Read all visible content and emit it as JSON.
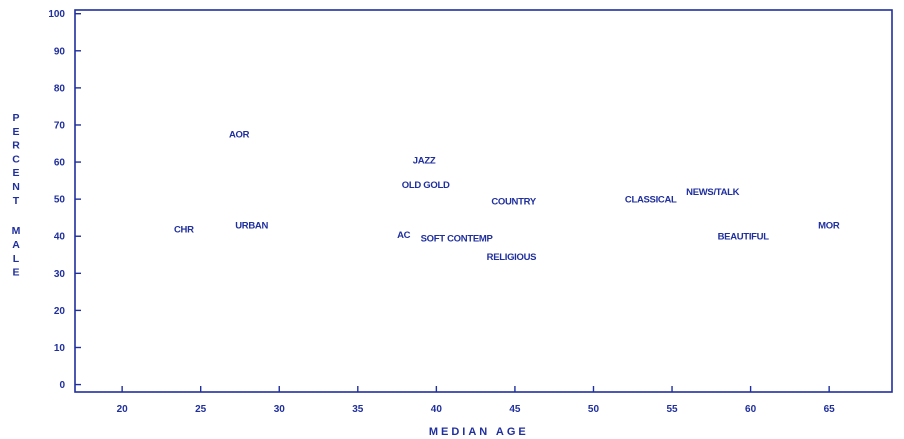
{
  "chart_data": {
    "type": "scatter",
    "title": "",
    "xlabel": "MEDIAN AGE",
    "ylabel": "PERCENT MALE",
    "xlim": [
      17,
      69
    ],
    "ylim": [
      -2,
      101
    ],
    "x_ticks": [
      20,
      25,
      30,
      35,
      40,
      45,
      50,
      55,
      60,
      65
    ],
    "y_ticks": [
      0,
      10,
      20,
      30,
      40,
      50,
      60,
      70,
      80,
      90,
      100
    ],
    "grid": false,
    "legend": "none",
    "color": "#1f2f9e",
    "points": [
      {
        "label": "CHR",
        "x": 23.3,
        "y": 42
      },
      {
        "label": "AOR",
        "x": 26.8,
        "y": 67.5
      },
      {
        "label": "URBAN",
        "x": 27.2,
        "y": 43
      },
      {
        "label": "JAZZ",
        "x": 38.5,
        "y": 60.5
      },
      {
        "label": "OLD GOLD",
        "x": 37.8,
        "y": 54
      },
      {
        "label": "AC",
        "x": 37.5,
        "y": 40.5
      },
      {
        "label": "SOFT CONTEMP",
        "x": 39.0,
        "y": 39.5
      },
      {
        "label": "COUNTRY",
        "x": 43.5,
        "y": 49.5
      },
      {
        "label": "RELIGIOUS",
        "x": 43.2,
        "y": 34.5
      },
      {
        "label": "CLASSICAL",
        "x": 52.0,
        "y": 50
      },
      {
        "label": "NEWS/TALK",
        "x": 55.9,
        "y": 52
      },
      {
        "label": "BEAUTIFUL",
        "x": 57.9,
        "y": 40
      },
      {
        "label": "MOR",
        "x": 64.3,
        "y": 43
      }
    ]
  }
}
